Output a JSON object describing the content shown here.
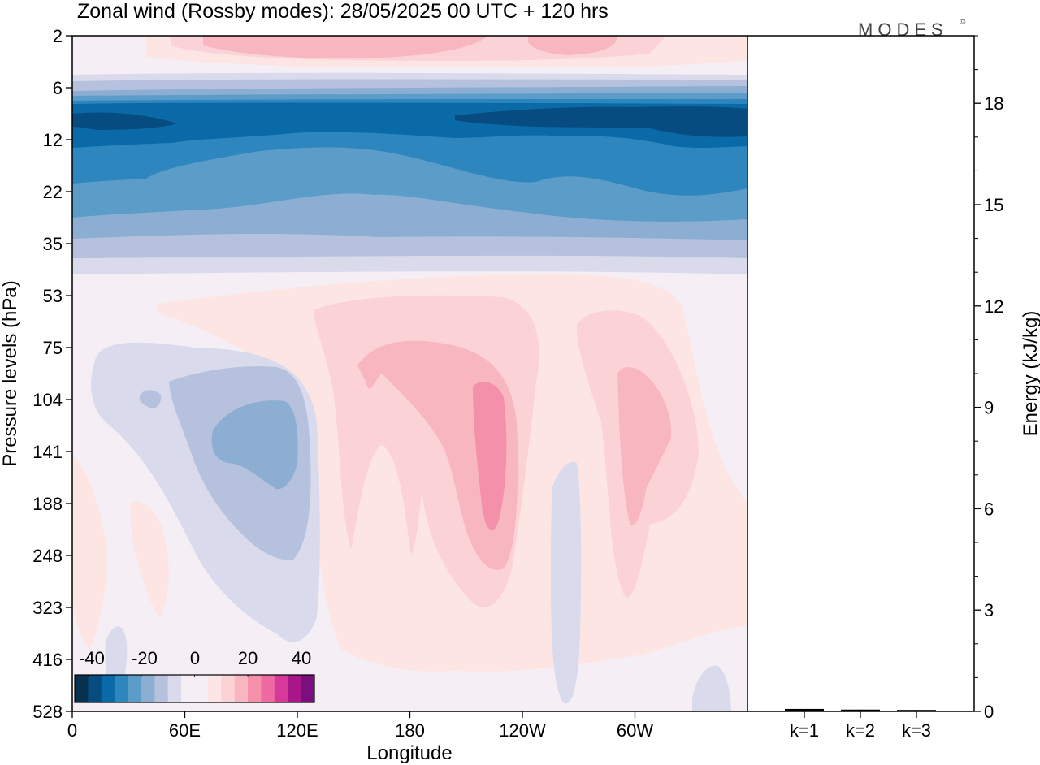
{
  "header": {
    "title": "Zonal wind (Rossby modes):  28/05/2025  00 UTC  + 120 hrs",
    "logo": "MODES",
    "logo_mark": "©"
  },
  "colors": {
    "c_m40": "#08304f",
    "c_m35": "#074c80",
    "c_m30": "#0a6aa8",
    "c_m25": "#2d86be",
    "c_m20": "#5c9cc9",
    "c_m15": "#8caed3",
    "c_m10": "#b6c1de",
    "c_m5": "#d9dbec",
    "c_0": "#f5eff5",
    "c_p5": "#fde5e4",
    "c_p10": "#fbd3d6",
    "c_p15": "#f8b7c0",
    "c_p20": "#f590aa",
    "c_p25": "#ee6aa0",
    "c_p30": "#d8389a",
    "c_p35": "#a8168a",
    "c_p40": "#7a0f7e",
    "c_p45": "#4a0a64"
  },
  "chart_data": [
    {
      "type": "heatmap",
      "title": "Zonal wind (Rossby modes):  28/05/2025  00 UTC  + 120 hrs",
      "xlabel": "Longitude",
      "ylabel": "Pressure levels (hPa)",
      "x_ticks": [
        "0",
        "60E",
        "120E",
        "180",
        "120W",
        "60W"
      ],
      "x_tick_values": [
        0,
        60,
        120,
        180,
        240,
        300
      ],
      "xlim": [
        0,
        360
      ],
      "y_ticks": [
        "2",
        "6",
        "12",
        "22",
        "35",
        "53",
        "75",
        "104",
        "141",
        "188",
        "248",
        "323",
        "416",
        "528"
      ],
      "y_inverted": true,
      "colorbar": {
        "ticks": [
          "-40",
          "-20",
          "0",
          "20",
          "40"
        ],
        "tick_values": [
          -40,
          -20,
          0,
          20,
          40
        ],
        "range": [
          -45,
          45
        ],
        "step": 5
      },
      "regions_description_note": null,
      "regions": [
        {
          "value": -10,
          "lon": [
            0,
            360
          ],
          "p": [
            5,
            42
          ]
        },
        {
          "value": -20,
          "lon": [
            0,
            360
          ],
          "p": [
            7,
            30
          ]
        },
        {
          "value": -30,
          "lon": [
            0,
            360
          ],
          "p": [
            8,
            14
          ]
        },
        {
          "value": -35,
          "lon": [
            210,
            360
          ],
          "p": [
            9,
            12
          ]
        },
        {
          "value": 10,
          "lon": [
            60,
            310
          ],
          "p": [
            2,
            3
          ]
        },
        {
          "value": 10,
          "lon": [
            150,
            250
          ],
          "p": [
            55,
            230
          ]
        },
        {
          "value": 15,
          "lon": [
            165,
            235
          ],
          "p": [
            70,
            260
          ]
        },
        {
          "value": 20,
          "lon": [
            213,
            232
          ],
          "p": [
            95,
            180
          ]
        },
        {
          "value": 15,
          "lon": [
            290,
            320
          ],
          "p": [
            85,
            200
          ]
        },
        {
          "value": -10,
          "lon": [
            20,
            130
          ],
          "p": [
            75,
            330
          ]
        },
        {
          "value": -15,
          "lon": [
            70,
            125
          ],
          "p": [
            100,
            160
          ]
        },
        {
          "value": -5,
          "lon": [
            255,
            270
          ],
          "p": [
            140,
            520
          ]
        }
      ]
    },
    {
      "type": "bar",
      "categories": [
        "k=1",
        "k=2",
        "k=3"
      ],
      "values": [
        0.05,
        0.03,
        0.02
      ],
      "ylabel": "Energy (kJ/kg)",
      "ylim": [
        0,
        20
      ],
      "y_ticks": [
        "0",
        "3",
        "6",
        "9",
        "12",
        "15",
        "18"
      ],
      "y_tick_values": [
        0,
        3,
        6,
        9,
        12,
        15,
        18
      ]
    }
  ]
}
